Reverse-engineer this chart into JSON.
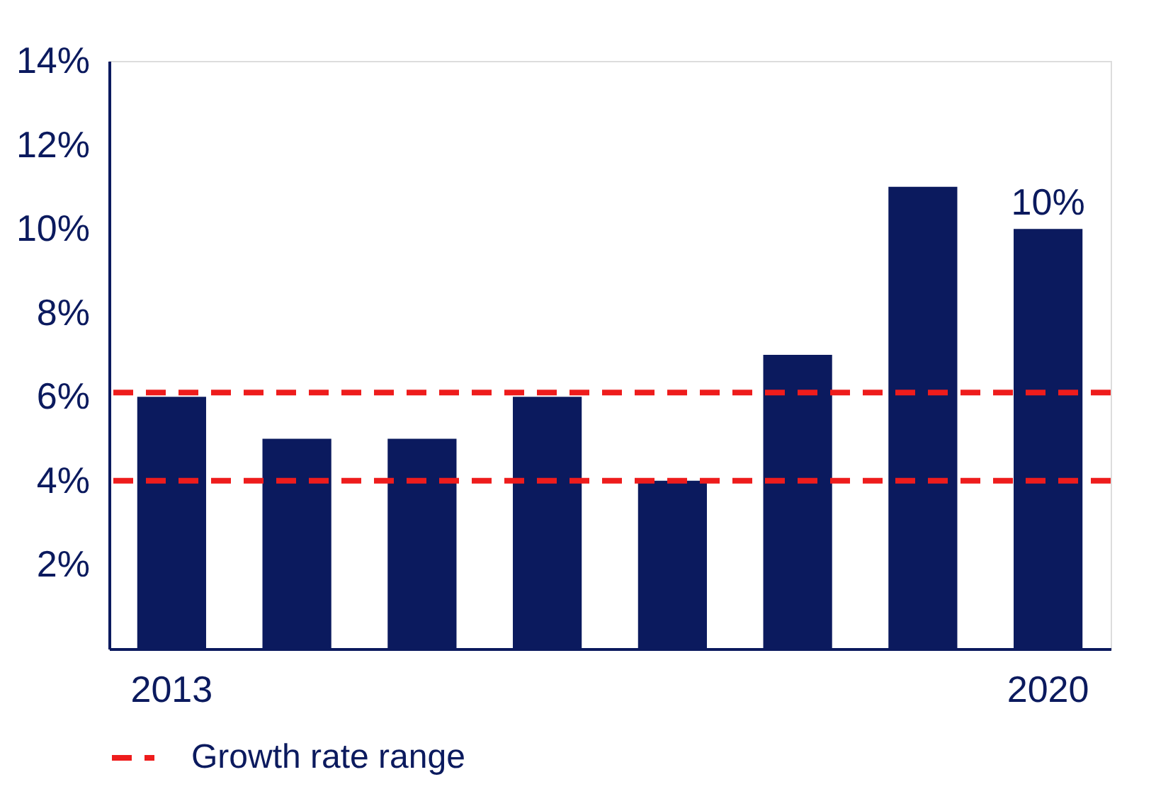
{
  "chart_data": {
    "type": "bar",
    "categories": [
      "2013",
      null,
      null,
      null,
      null,
      null,
      null,
      "2020"
    ],
    "values": [
      6,
      5,
      5,
      6,
      4,
      7,
      11,
      10
    ],
    "value_labels": [
      null,
      null,
      null,
      null,
      null,
      null,
      null,
      "10%"
    ],
    "color": "#0b1a5e",
    "ylim": [
      0,
      14
    ],
    "yticks": [
      {
        "value": 0,
        "label": null
      },
      {
        "value": 2,
        "label": "2%"
      },
      {
        "value": 4,
        "label": "4%"
      },
      {
        "value": 6,
        "label": "6%"
      },
      {
        "value": 8,
        "label": "8%"
      },
      {
        "value": 10,
        "label": "10%"
      },
      {
        "value": 12,
        "label": "12%"
      },
      {
        "value": 14,
        "label": "14%"
      }
    ],
    "ref_lines": [
      {
        "axis": "y",
        "value": 6.1,
        "label": "Growth rate range",
        "color": "#ee1c1c",
        "line_style": "dashed"
      },
      {
        "axis": "y",
        "value": 4.0,
        "color": "#ee1c1c",
        "line_style": "dashed"
      }
    ],
    "grid": false,
    "legend": "bottom"
  }
}
